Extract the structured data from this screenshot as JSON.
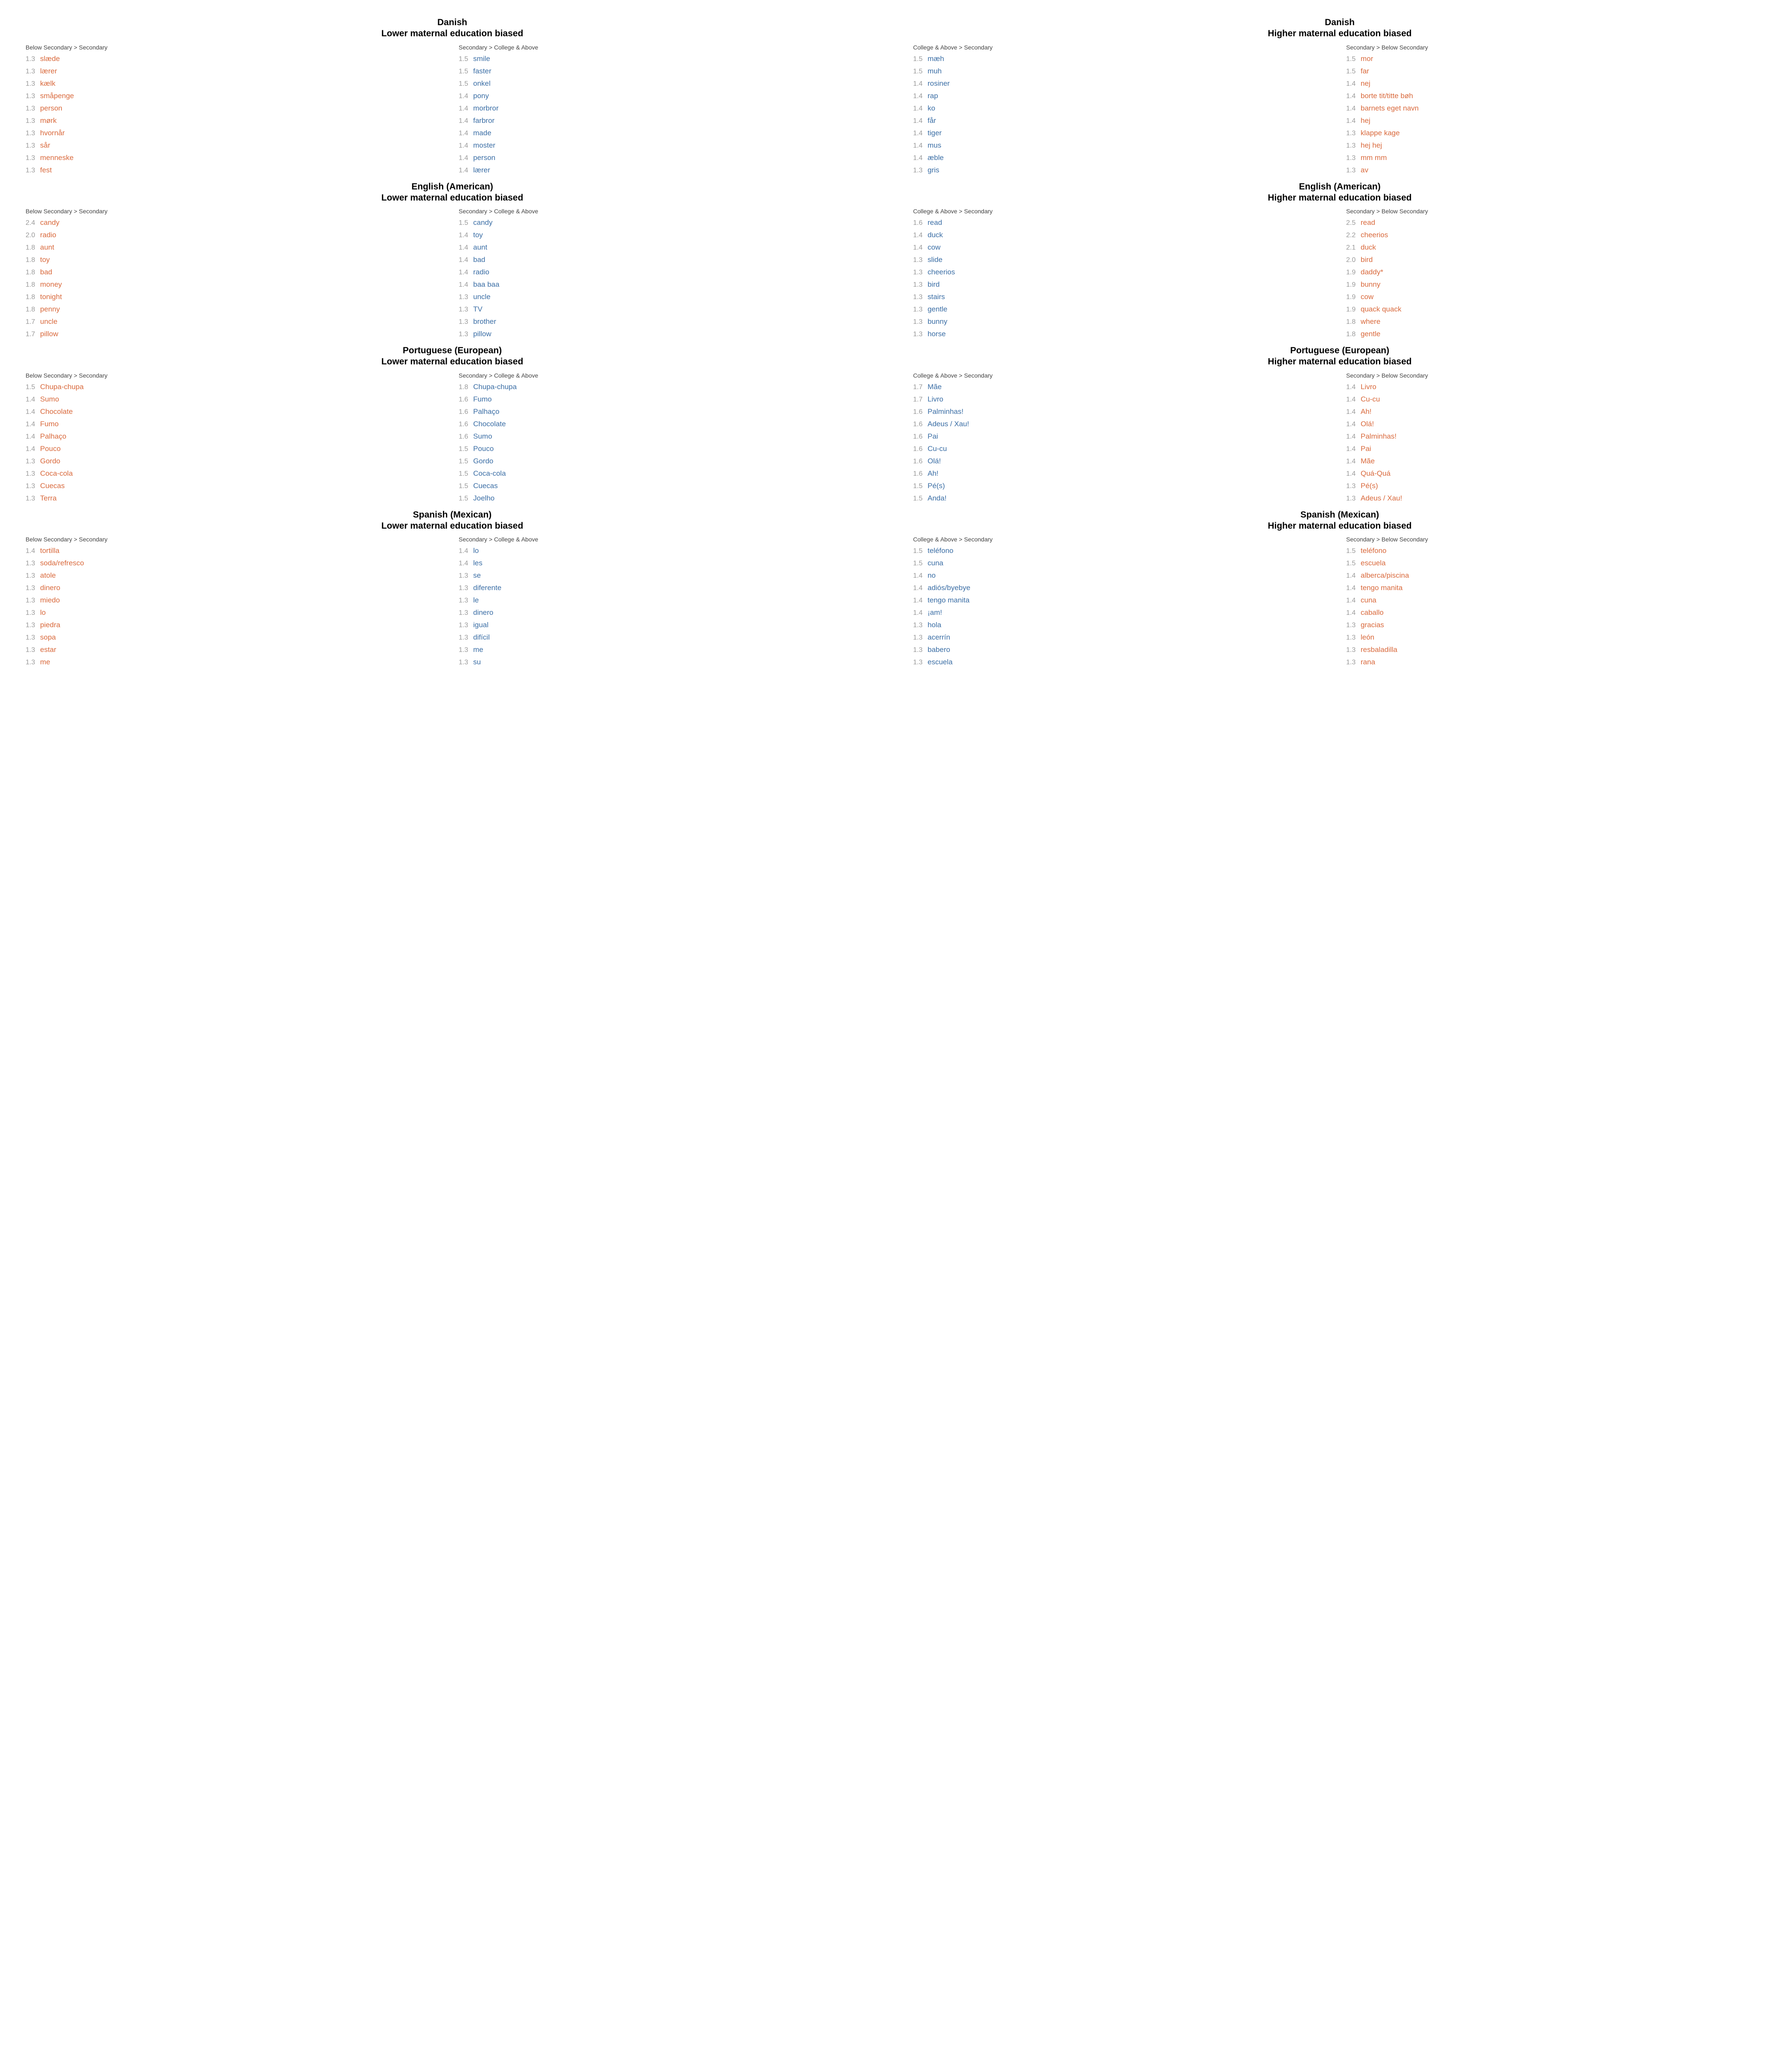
{
  "colors": {
    "orange": "#d9693c",
    "blue": "#3b6ea5",
    "grey": "#9a9a9a",
    "header_text": "#444444",
    "background": "#ffffff",
    "title_text": "#000000"
  },
  "typography": {
    "title_fontsize_pt": 16,
    "title_fontweight": 700,
    "header_fontsize_pt": 11,
    "row_fontsize_pt": 13,
    "val_fontsize_pt": 12,
    "font_family": "-apple-system / Helvetica Neue"
  },
  "layout": {
    "outer_columns": 2,
    "inner_columns_per_panel": 2,
    "rows_per_list": 10
  },
  "panels": [
    {
      "language": "Danish",
      "bias": "Lower maternal education biased",
      "columns": [
        {
          "header": "Below Secondary > Secondary",
          "color": "orange",
          "items": [
            {
              "v": "1.3",
              "w": "slæde"
            },
            {
              "v": "1.3",
              "w": "lærer"
            },
            {
              "v": "1.3",
              "w": "kælk"
            },
            {
              "v": "1.3",
              "w": "småpenge"
            },
            {
              "v": "1.3",
              "w": "person"
            },
            {
              "v": "1.3",
              "w": "mørk"
            },
            {
              "v": "1.3",
              "w": "hvornår"
            },
            {
              "v": "1.3",
              "w": "sår"
            },
            {
              "v": "1.3",
              "w": "menneske"
            },
            {
              "v": "1.3",
              "w": "fest"
            }
          ]
        },
        {
          "header": "Secondary > College & Above",
          "color": "blue",
          "items": [
            {
              "v": "1.5",
              "w": "smile"
            },
            {
              "v": "1.5",
              "w": "faster"
            },
            {
              "v": "1.5",
              "w": "onkel"
            },
            {
              "v": "1.4",
              "w": "pony"
            },
            {
              "v": "1.4",
              "w": "morbror"
            },
            {
              "v": "1.4",
              "w": "farbror"
            },
            {
              "v": "1.4",
              "w": "made"
            },
            {
              "v": "1.4",
              "w": "moster"
            },
            {
              "v": "1.4",
              "w": "person"
            },
            {
              "v": "1.4",
              "w": "lærer"
            }
          ]
        }
      ]
    },
    {
      "language": "Danish",
      "bias": "Higher maternal education biased",
      "columns": [
        {
          "header": "College & Above > Secondary",
          "color": "blue",
          "items": [
            {
              "v": "1.5",
              "w": "mæh"
            },
            {
              "v": "1.5",
              "w": "muh"
            },
            {
              "v": "1.4",
              "w": "rosiner"
            },
            {
              "v": "1.4",
              "w": "rap"
            },
            {
              "v": "1.4",
              "w": "ko"
            },
            {
              "v": "1.4",
              "w": "får"
            },
            {
              "v": "1.4",
              "w": "tiger"
            },
            {
              "v": "1.4",
              "w": "mus"
            },
            {
              "v": "1.4",
              "w": "æble"
            },
            {
              "v": "1.3",
              "w": "gris"
            }
          ]
        },
        {
          "header": "Secondary > Below Secondary",
          "color": "orange",
          "items": [
            {
              "v": "1.5",
              "w": "mor"
            },
            {
              "v": "1.5",
              "w": "far"
            },
            {
              "v": "1.4",
              "w": "nej"
            },
            {
              "v": "1.4",
              "w": "borte tit/titte bøh"
            },
            {
              "v": "1.4",
              "w": "barnets eget navn"
            },
            {
              "v": "1.4",
              "w": "hej"
            },
            {
              "v": "1.3",
              "w": "klappe kage"
            },
            {
              "v": "1.3",
              "w": "hej hej"
            },
            {
              "v": "1.3",
              "w": "mm mm"
            },
            {
              "v": "1.3",
              "w": "av"
            }
          ]
        }
      ]
    },
    {
      "language": "English (American)",
      "bias": "Lower maternal education biased",
      "columns": [
        {
          "header": "Below Secondary > Secondary",
          "color": "orange",
          "items": [
            {
              "v": "2.4",
              "w": "candy"
            },
            {
              "v": "2.0",
              "w": "radio"
            },
            {
              "v": "1.8",
              "w": "aunt"
            },
            {
              "v": "1.8",
              "w": "toy"
            },
            {
              "v": "1.8",
              "w": "bad"
            },
            {
              "v": "1.8",
              "w": "money"
            },
            {
              "v": "1.8",
              "w": "tonight"
            },
            {
              "v": "1.8",
              "w": "penny"
            },
            {
              "v": "1.7",
              "w": "uncle"
            },
            {
              "v": "1.7",
              "w": "pillow"
            }
          ]
        },
        {
          "header": "Secondary > College & Above",
          "color": "blue",
          "items": [
            {
              "v": "1.5",
              "w": "candy"
            },
            {
              "v": "1.4",
              "w": "toy"
            },
            {
              "v": "1.4",
              "w": "aunt"
            },
            {
              "v": "1.4",
              "w": "bad"
            },
            {
              "v": "1.4",
              "w": "radio"
            },
            {
              "v": "1.4",
              "w": "baa baa"
            },
            {
              "v": "1.3",
              "w": "uncle"
            },
            {
              "v": "1.3",
              "w": "TV"
            },
            {
              "v": "1.3",
              "w": "brother"
            },
            {
              "v": "1.3",
              "w": "pillow"
            }
          ]
        }
      ]
    },
    {
      "language": "English (American)",
      "bias": "Higher maternal education biased",
      "columns": [
        {
          "header": "College & Above > Secondary",
          "color": "blue",
          "items": [
            {
              "v": "1.6",
              "w": "read"
            },
            {
              "v": "1.4",
              "w": "duck"
            },
            {
              "v": "1.4",
              "w": "cow"
            },
            {
              "v": "1.3",
              "w": "slide"
            },
            {
              "v": "1.3",
              "w": "cheerios"
            },
            {
              "v": "1.3",
              "w": "bird"
            },
            {
              "v": "1.3",
              "w": "stairs"
            },
            {
              "v": "1.3",
              "w": "gentle"
            },
            {
              "v": "1.3",
              "w": "bunny"
            },
            {
              "v": "1.3",
              "w": "horse"
            }
          ]
        },
        {
          "header": "Secondary > Below Secondary",
          "color": "orange",
          "items": [
            {
              "v": "2.5",
              "w": "read"
            },
            {
              "v": "2.2",
              "w": "cheerios"
            },
            {
              "v": "2.1",
              "w": "duck"
            },
            {
              "v": "2.0",
              "w": "bird"
            },
            {
              "v": "1.9",
              "w": "daddy*"
            },
            {
              "v": "1.9",
              "w": "bunny"
            },
            {
              "v": "1.9",
              "w": "cow"
            },
            {
              "v": "1.9",
              "w": "quack quack"
            },
            {
              "v": "1.8",
              "w": "where"
            },
            {
              "v": "1.8",
              "w": "gentle"
            }
          ]
        }
      ]
    },
    {
      "language": "Portuguese (European)",
      "bias": "Lower maternal education biased",
      "columns": [
        {
          "header": "Below Secondary > Secondary",
          "color": "orange",
          "items": [
            {
              "v": "1.5",
              "w": "Chupa-chupa"
            },
            {
              "v": "1.4",
              "w": "Sumo"
            },
            {
              "v": "1.4",
              "w": "Chocolate"
            },
            {
              "v": "1.4",
              "w": "Fumo"
            },
            {
              "v": "1.4",
              "w": "Palhaço"
            },
            {
              "v": "1.4",
              "w": "Pouco"
            },
            {
              "v": "1.3",
              "w": "Gordo"
            },
            {
              "v": "1.3",
              "w": "Coca-cola"
            },
            {
              "v": "1.3",
              "w": "Cuecas"
            },
            {
              "v": "1.3",
              "w": "Terra"
            }
          ]
        },
        {
          "header": "Secondary > College & Above",
          "color": "blue",
          "items": [
            {
              "v": "1.8",
              "w": "Chupa-chupa"
            },
            {
              "v": "1.6",
              "w": "Fumo"
            },
            {
              "v": "1.6",
              "w": "Palhaço"
            },
            {
              "v": "1.6",
              "w": "Chocolate"
            },
            {
              "v": "1.6",
              "w": "Sumo"
            },
            {
              "v": "1.5",
              "w": "Pouco"
            },
            {
              "v": "1.5",
              "w": "Gordo"
            },
            {
              "v": "1.5",
              "w": "Coca-cola"
            },
            {
              "v": "1.5",
              "w": "Cuecas"
            },
            {
              "v": "1.5",
              "w": "Joelho"
            }
          ]
        }
      ]
    },
    {
      "language": "Portuguese (European)",
      "bias": "Higher maternal education biased",
      "columns": [
        {
          "header": "College & Above > Secondary",
          "color": "blue",
          "items": [
            {
              "v": "1.7",
              "w": "Mãe"
            },
            {
              "v": "1.7",
              "w": "Livro"
            },
            {
              "v": "1.6",
              "w": "Palminhas!"
            },
            {
              "v": "1.6",
              "w": "Adeus / Xau!"
            },
            {
              "v": "1.6",
              "w": "Pai"
            },
            {
              "v": "1.6",
              "w": "Cu-cu"
            },
            {
              "v": "1.6",
              "w": "Olá!"
            },
            {
              "v": "1.6",
              "w": "Ah!"
            },
            {
              "v": "1.5",
              "w": "Pé(s)"
            },
            {
              "v": "1.5",
              "w": "Anda!"
            }
          ]
        },
        {
          "header": "Secondary > Below Secondary",
          "color": "orange",
          "items": [
            {
              "v": "1.4",
              "w": "Livro"
            },
            {
              "v": "1.4",
              "w": "Cu-cu"
            },
            {
              "v": "1.4",
              "w": "Ah!"
            },
            {
              "v": "1.4",
              "w": "Olá!"
            },
            {
              "v": "1.4",
              "w": "Palminhas!"
            },
            {
              "v": "1.4",
              "w": "Pai"
            },
            {
              "v": "1.4",
              "w": "Mãe"
            },
            {
              "v": "1.4",
              "w": "Quá-Quá"
            },
            {
              "v": "1.3",
              "w": "Pé(s)"
            },
            {
              "v": "1.3",
              "w": "Adeus / Xau!"
            }
          ]
        }
      ]
    },
    {
      "language": "Spanish (Mexican)",
      "bias": "Lower maternal education biased",
      "columns": [
        {
          "header": "Below Secondary > Secondary",
          "color": "orange",
          "items": [
            {
              "v": "1.4",
              "w": "tortilla"
            },
            {
              "v": "1.3",
              "w": "soda/refresco"
            },
            {
              "v": "1.3",
              "w": "atole"
            },
            {
              "v": "1.3",
              "w": "dinero"
            },
            {
              "v": "1.3",
              "w": "miedo"
            },
            {
              "v": "1.3",
              "w": "lo"
            },
            {
              "v": "1.3",
              "w": "piedra"
            },
            {
              "v": "1.3",
              "w": "sopa"
            },
            {
              "v": "1.3",
              "w": "estar"
            },
            {
              "v": "1.3",
              "w": "me"
            }
          ]
        },
        {
          "header": "Secondary > College & Above",
          "color": "blue",
          "items": [
            {
              "v": "1.4",
              "w": "lo"
            },
            {
              "v": "1.4",
              "w": "les"
            },
            {
              "v": "1.3",
              "w": "se"
            },
            {
              "v": "1.3",
              "w": "diferente"
            },
            {
              "v": "1.3",
              "w": "le"
            },
            {
              "v": "1.3",
              "w": "dinero"
            },
            {
              "v": "1.3",
              "w": "igual"
            },
            {
              "v": "1.3",
              "w": "difícil"
            },
            {
              "v": "1.3",
              "w": "me"
            },
            {
              "v": "1.3",
              "w": "su"
            }
          ]
        }
      ]
    },
    {
      "language": "Spanish (Mexican)",
      "bias": "Higher maternal education biased",
      "columns": [
        {
          "header": "College & Above > Secondary",
          "color": "blue",
          "items": [
            {
              "v": "1.5",
              "w": "teléfono"
            },
            {
              "v": "1.5",
              "w": "cuna"
            },
            {
              "v": "1.4",
              "w": "no"
            },
            {
              "v": "1.4",
              "w": "adiós/byebye"
            },
            {
              "v": "1.4",
              "w": "tengo manita"
            },
            {
              "v": "1.4",
              "w": "¡am!"
            },
            {
              "v": "1.3",
              "w": "hola"
            },
            {
              "v": "1.3",
              "w": "acerrín"
            },
            {
              "v": "1.3",
              "w": "babero"
            },
            {
              "v": "1.3",
              "w": "escuela"
            }
          ]
        },
        {
          "header": "Secondary > Below Secondary",
          "color": "orange",
          "items": [
            {
              "v": "1.5",
              "w": "teléfono"
            },
            {
              "v": "1.5",
              "w": "escuela"
            },
            {
              "v": "1.4",
              "w": "alberca/piscina"
            },
            {
              "v": "1.4",
              "w": "tengo manita"
            },
            {
              "v": "1.4",
              "w": "cuna"
            },
            {
              "v": "1.4",
              "w": "caballo"
            },
            {
              "v": "1.3",
              "w": "gracias"
            },
            {
              "v": "1.3",
              "w": "león"
            },
            {
              "v": "1.3",
              "w": "resbaladilla"
            },
            {
              "v": "1.3",
              "w": "rana"
            }
          ]
        }
      ]
    }
  ]
}
